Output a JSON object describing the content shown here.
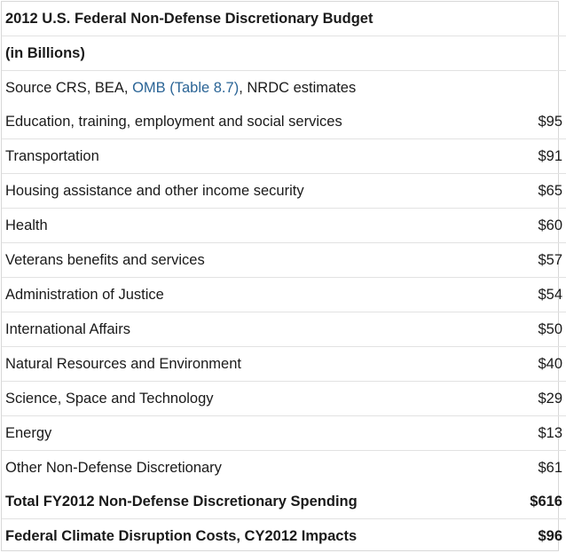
{
  "header": {
    "title": "2012 U.S. Federal Non-Defense Discretionary Budget",
    "subtitle": "(in Billions)",
    "source": {
      "prefix": "Source CRS, BEA, ",
      "link_text": "OMB (Table 8.7)",
      "suffix": ", NRDC estimates"
    }
  },
  "rows": [
    {
      "label": "Education, training, employment and social services",
      "value": "$95"
    },
    {
      "label": "Transportation",
      "value": "$91"
    },
    {
      "label": "Housing assistance and other income security",
      "value": "$65"
    },
    {
      "label": "Health",
      "value": "$60"
    },
    {
      "label": "Veterans benefits and services",
      "value": "$57"
    },
    {
      "label": "Administration of Justice",
      "value": "$54"
    },
    {
      "label": "International Affairs",
      "value": "$50"
    },
    {
      "label": "Natural Resources and Environment",
      "value": "$40"
    },
    {
      "label": "Science, Space and Technology",
      "value": "$29"
    },
    {
      "label": "Energy",
      "value": "$13"
    },
    {
      "label": "Other Non-Defense Discretionary",
      "value": "$61"
    }
  ],
  "totals": [
    {
      "label": "Total FY2012 Non-Defense Discretionary Spending",
      "value": "$616"
    },
    {
      "label": "Federal Climate Disruption Costs, CY2012 Impacts",
      "value": "$96"
    }
  ],
  "colors": {
    "link": "#2a6496",
    "text": "#1a1a1a",
    "rule": "#e2e2e2"
  }
}
